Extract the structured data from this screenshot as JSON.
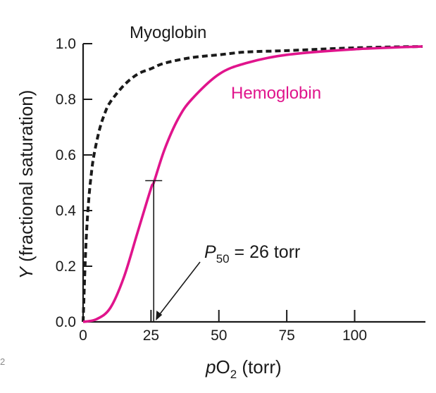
{
  "chart_data": {
    "type": "line",
    "xlabel": {
      "prefix": "p",
      "main": "O",
      "sub": "2",
      "suffix": " (torr)"
    },
    "ylabel": {
      "italic": "Y",
      "rest": " (fractional saturation)"
    },
    "xlim": [
      0,
      125
    ],
    "ylim": [
      0,
      1.0
    ],
    "x_ticks": [
      0,
      25,
      50,
      75,
      100
    ],
    "x_tick_labels": [
      "0",
      "25",
      "50",
      "75",
      "100"
    ],
    "y_ticks": [
      0.0,
      0.2,
      0.4,
      0.6,
      0.8,
      1.0
    ],
    "y_tick_labels": [
      "0.0",
      "0.2",
      "0.4",
      "0.6",
      "0.8",
      "1.0"
    ],
    "grid": false,
    "series": [
      {
        "name": "Myoglobin",
        "style": "dashed",
        "color": "#1a1a1a",
        "x": [
          0,
          1,
          2,
          3,
          4,
          6,
          8,
          10,
          15,
          20,
          25,
          30,
          40,
          50,
          60,
          75,
          100,
          125
        ],
        "y": [
          0,
          0.27,
          0.43,
          0.53,
          0.6,
          0.69,
          0.75,
          0.79,
          0.85,
          0.89,
          0.91,
          0.93,
          0.95,
          0.96,
          0.97,
          0.975,
          0.985,
          0.99
        ]
      },
      {
        "name": "Hemoglobin",
        "style": "solid",
        "color": "#e0148c",
        "x": [
          0,
          5,
          10,
          15,
          20,
          25,
          26,
          30,
          35,
          40,
          50,
          60,
          75,
          100,
          125
        ],
        "y": [
          0,
          0.01,
          0.05,
          0.16,
          0.32,
          0.48,
          0.5,
          0.62,
          0.73,
          0.8,
          0.89,
          0.93,
          0.96,
          0.98,
          0.99
        ]
      }
    ],
    "annotations": [
      {
        "prefix": "P",
        "sub": "50",
        "text": " = 26 torr",
        "x": 26,
        "y": 0.5
      }
    ]
  },
  "corner_mark": "2"
}
